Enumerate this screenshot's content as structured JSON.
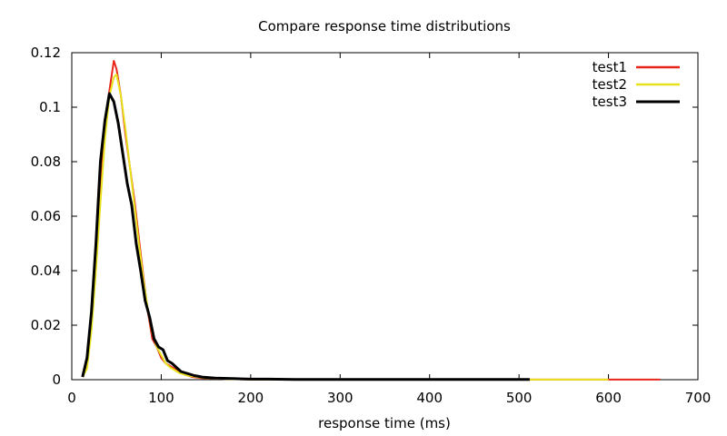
{
  "chart_data": {
    "type": "line",
    "title": "Compare response time distributions",
    "xlabel": "response time (ms)",
    "ylabel": "",
    "xlim": [
      0,
      700
    ],
    "ylim": [
      0,
      0.12
    ],
    "xticks": [
      0,
      100,
      200,
      300,
      400,
      500,
      600,
      700
    ],
    "yticks": [
      0,
      0.02,
      0.04,
      0.06,
      0.08,
      0.1,
      0.12
    ],
    "xtick_labels": [
      "0",
      "100",
      "200",
      "300",
      "400",
      "500",
      "600",
      "700"
    ],
    "ytick_labels": [
      "0",
      "0.02",
      "0.04",
      "0.06",
      "0.08",
      "0.1",
      "0.12"
    ],
    "grid": false,
    "legend_position": "top-right",
    "series": [
      {
        "name": "test1",
        "color": "#e8251a",
        "x": [
          12,
          17,
          22,
          27,
          32,
          37,
          42,
          47,
          50,
          55,
          60,
          65,
          70,
          75,
          80,
          85,
          90,
          95,
          100,
          105,
          110,
          115,
          120,
          125,
          130,
          135,
          140,
          145,
          150,
          160,
          170,
          180,
          200,
          250,
          300,
          400,
          500,
          550,
          600,
          650,
          658
        ],
        "y": [
          0.001,
          0.005,
          0.02,
          0.045,
          0.07,
          0.092,
          0.106,
          0.117,
          0.114,
          0.104,
          0.09,
          0.078,
          0.066,
          0.052,
          0.038,
          0.025,
          0.015,
          0.012,
          0.008,
          0.006,
          0.005,
          0.004,
          0.003,
          0.002,
          0.0015,
          0.001,
          0.0008,
          0.0006,
          0.0005,
          0.0004,
          0.0003,
          0.0002,
          0.0001,
          0.0001,
          5e-05,
          5e-05,
          5e-05,
          3e-05,
          3e-05,
          3e-05,
          3e-05
        ]
      },
      {
        "name": "test2",
        "color": "#e6e21e",
        "x": [
          12,
          17,
          22,
          27,
          32,
          37,
          42,
          47,
          50,
          55,
          60,
          65,
          70,
          75,
          80,
          85,
          90,
          95,
          100,
          105,
          110,
          115,
          120,
          125,
          130,
          140,
          150,
          160,
          180,
          200,
          250,
          300,
          400,
          500,
          550,
          600
        ],
        "y": [
          0.001,
          0.004,
          0.018,
          0.04,
          0.065,
          0.088,
          0.104,
          0.111,
          0.112,
          0.104,
          0.092,
          0.078,
          0.064,
          0.05,
          0.037,
          0.026,
          0.017,
          0.012,
          0.009,
          0.006,
          0.0045,
          0.0035,
          0.0025,
          0.002,
          0.0015,
          0.001,
          0.0006,
          0.0004,
          0.0002,
          0.0001,
          5e-05,
          5e-05,
          3e-05,
          3e-05,
          3e-05,
          3e-05
        ]
      },
      {
        "name": "test3",
        "color": "#000000",
        "x": [
          12,
          17,
          22,
          27,
          32,
          37,
          42,
          47,
          52,
          57,
          62,
          67,
          72,
          77,
          82,
          87,
          92,
          97,
          102,
          107,
          112,
          117,
          122,
          127,
          132,
          137,
          142,
          147,
          152,
          160,
          170,
          180,
          190,
          200,
          220,
          250,
          300,
          350,
          400,
          450,
          512
        ],
        "y": [
          0.001,
          0.008,
          0.025,
          0.05,
          0.08,
          0.095,
          0.105,
          0.102,
          0.094,
          0.083,
          0.072,
          0.064,
          0.05,
          0.04,
          0.029,
          0.023,
          0.015,
          0.012,
          0.011,
          0.007,
          0.006,
          0.0045,
          0.003,
          0.0025,
          0.002,
          0.0015,
          0.0012,
          0.0009,
          0.0008,
          0.0006,
          0.0005,
          0.0004,
          0.0003,
          0.0002,
          0.0002,
          0.0001,
          0.0001,
          0.0001,
          0.0001,
          0.0001,
          0.0001
        ]
      }
    ]
  }
}
